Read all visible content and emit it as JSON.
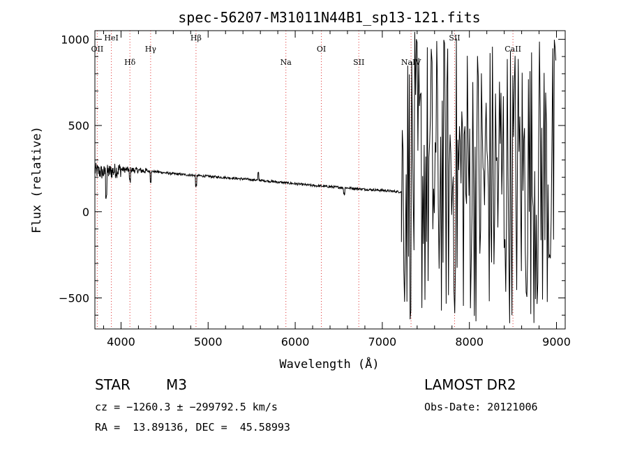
{
  "chart_data": {
    "type": "line",
    "title": "spec-56207-M31011N44B1_sp13-121.fits",
    "xlabel": "Wavelength (Å)",
    "ylabel": "Flux (relative)",
    "xlim": [
      3700,
      9100
    ],
    "ylim": [
      -680,
      1050
    ],
    "xticks": [
      4000,
      5000,
      6000,
      7000,
      8000,
      9000
    ],
    "yticks": [
      -500,
      0,
      500,
      1000
    ],
    "lines": [
      {
        "label": "OII",
        "x": 3727
      },
      {
        "label": "HeI",
        "x": 3889
      },
      {
        "label": "Hδ",
        "x": 4102
      },
      {
        "label": "Hγ",
        "x": 4340
      },
      {
        "label": "Hβ",
        "x": 4861
      },
      {
        "label": "Na",
        "x": 5893
      },
      {
        "label": "OI",
        "x": 6300
      },
      {
        "label": "SII",
        "x": 6730
      },
      {
        "label": "NaIV",
        "x": 7330
      },
      {
        "label": "SII",
        "x": 7830
      },
      {
        "label": "CaII",
        "x": 8500
      }
    ],
    "continuum": [
      [
        3700,
        240
      ],
      [
        3800,
        225
      ],
      [
        3900,
        235
      ],
      [
        4000,
        245
      ],
      [
        4200,
        240
      ],
      [
        4400,
        232
      ],
      [
        4600,
        220
      ],
      [
        4800,
        212
      ],
      [
        5000,
        205
      ],
      [
        5200,
        198
      ],
      [
        5400,
        190
      ],
      [
        5600,
        182
      ],
      [
        5800,
        172
      ],
      [
        6000,
        162
      ],
      [
        6200,
        152
      ],
      [
        6400,
        145
      ],
      [
        6600,
        138
      ],
      [
        6800,
        130
      ],
      [
        7000,
        124
      ],
      [
        7200,
        115
      ]
    ],
    "noise_region": {
      "x_start": 7220,
      "x_end": 9000,
      "y_min": -650,
      "y_max": 1050
    }
  },
  "info": {
    "object_class": "STAR",
    "subclass": "M3",
    "survey": "LAMOST DR2",
    "cz_line": "cz = −1260.3 ± −299792.5 km/s",
    "obs_date": "Obs-Date: 20121006",
    "radec": "RA =  13.89136, DEC =  45.58993"
  }
}
